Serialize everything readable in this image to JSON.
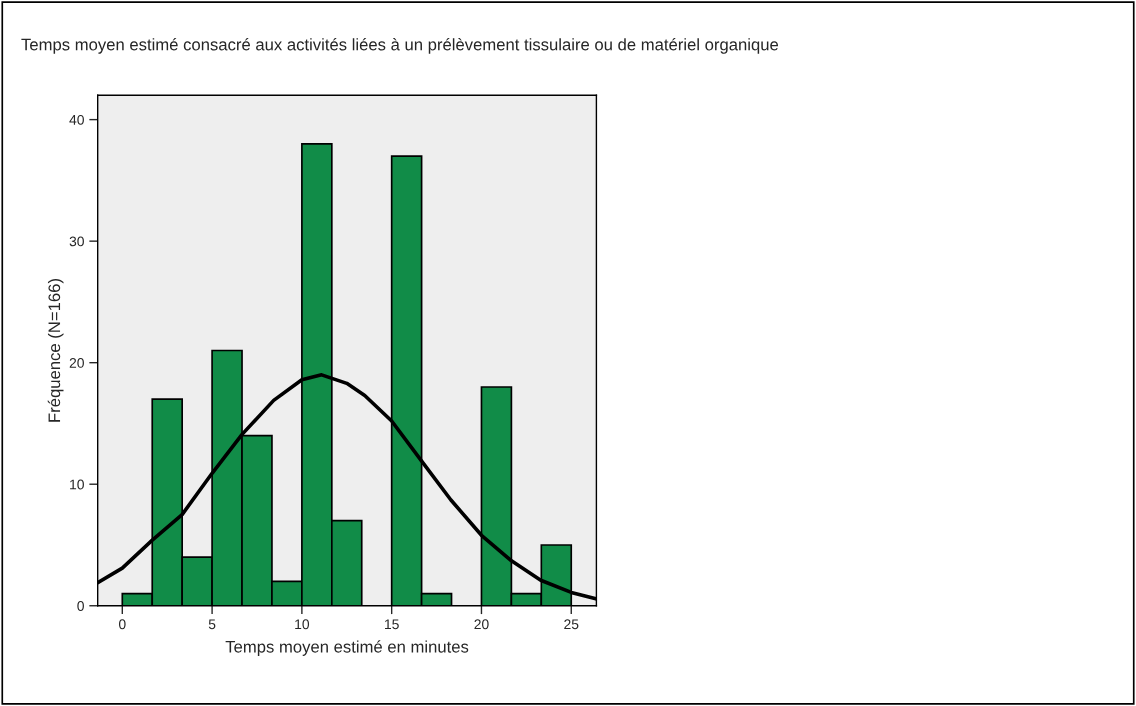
{
  "chart_data": {
    "type": "histogram",
    "title": "Temps moyen estimé consacré aux activités liées à un prélèvement tissulaire ou de matériel organique",
    "xlabel": "Temps moyen estimé en minutes",
    "ylabel": "Fréquence (N=166)",
    "bins": [
      0,
      1.667,
      3.333,
      5,
      6.667,
      8.333,
      10,
      11.667,
      13.333,
      15,
      16.667,
      18.333,
      20,
      21.667,
      23.333,
      25
    ],
    "values": [
      1,
      17,
      4,
      21,
      14,
      2,
      38,
      7,
      0,
      37,
      1,
      0,
      18,
      1,
      5
    ],
    "color": "#118c48",
    "series": [
      {
        "type": "line",
        "color": "#000000",
        "x": [
          -1.37,
          0,
          1.67,
          3.33,
          5,
          6.67,
          8.43,
          10,
          11.1,
          12.5,
          13.5,
          15,
          16.67,
          18.3,
          20,
          21.67,
          23.3,
          25,
          26.37
        ],
        "values": [
          1.9,
          3.1,
          5.4,
          7.5,
          10.9,
          14.1,
          16.9,
          18.6,
          19,
          18.3,
          17.3,
          15.2,
          11.9,
          8.7,
          5.8,
          3.7,
          2.1,
          1.1,
          0.57
        ]
      }
    ],
    "xlim": [
      -1.37,
      26.4
    ],
    "ylim": [
      0,
      42
    ],
    "xticks": [
      0,
      5,
      10,
      15,
      20,
      25
    ],
    "yticks": [
      0,
      10,
      20,
      30,
      40
    ],
    "grid": false,
    "legend": false
  }
}
